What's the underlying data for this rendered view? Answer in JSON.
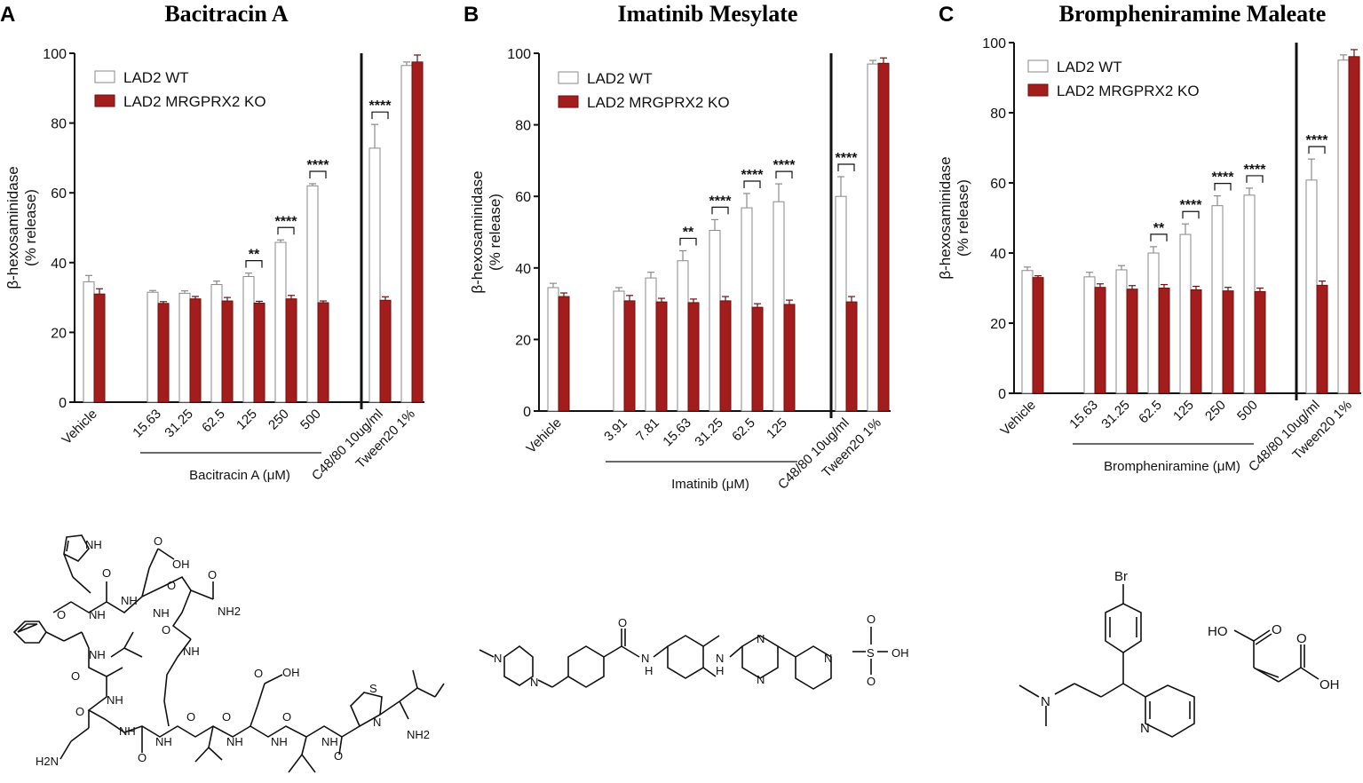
{
  "colors": {
    "wt_fill": "#ffffff",
    "ko_fill": "#a31d1d",
    "axis": "#111111"
  },
  "chart_data": [
    {
      "type": "bar",
      "panel_letter": "A",
      "title": "Bacitracin A",
      "ylabel_line1": "β-hexosaminidase",
      "ylabel_line2": "(% release)",
      "ylim": [
        0,
        100
      ],
      "yticks": [
        0,
        20,
        40,
        60,
        80,
        100
      ],
      "categories": [
        "Vehicle",
        "15.63",
        "31.25",
        "62.5",
        "125",
        "250",
        "500",
        "C48/80 10ug/ml",
        "Tween20 1%"
      ],
      "group_label": "Bacitracin A (μM)",
      "legend": [
        "LAD2 WT",
        "LAD2 MRGPRX2 KO"
      ],
      "series": [
        {
          "name": "LAD2 WT",
          "values": [
            34.5,
            31.5,
            31.2,
            33.7,
            36.0,
            45.8,
            62.0,
            72.8,
            96.5
          ],
          "errors": [
            1.8,
            0.5,
            0.7,
            1.0,
            1.0,
            0.7,
            0.6,
            6.8,
            1.0
          ]
        },
        {
          "name": "LAD2 MRGPRX2 KO",
          "values": [
            31.0,
            28.3,
            29.6,
            29.0,
            28.4,
            29.6,
            28.5,
            29.2,
            97.5
          ],
          "errors": [
            1.5,
            0.5,
            0.7,
            1.0,
            0.5,
            1.0,
            0.5,
            1.0,
            2.0
          ]
        }
      ],
      "significance": [
        {
          "category": "125",
          "label": "**"
        },
        {
          "category": "250",
          "label": "****"
        },
        {
          "category": "500",
          "label": "****"
        },
        {
          "category": "C48/80 10ug/ml",
          "label": "****"
        }
      ]
    },
    {
      "type": "bar",
      "panel_letter": "B",
      "title": "Imatinib Mesylate",
      "ylabel_line1": "β-hexosaminidase",
      "ylabel_line2": "(% release)",
      "ylim": [
        0,
        100
      ],
      "yticks": [
        0,
        20,
        40,
        60,
        80,
        100
      ],
      "categories": [
        "Vehicle",
        "3.91",
        "7.81",
        "15.63",
        "31.25",
        "62.5",
        "125",
        "C48/80 10ug/ml",
        "Tween20 1%"
      ],
      "group_label": "Imatinib (μM)",
      "legend": [
        "LAD2 WT",
        "LAD2 MRGPRX2 KO"
      ],
      "series": [
        {
          "name": "LAD2 WT",
          "values": [
            34.5,
            33.5,
            37.2,
            42.0,
            50.5,
            56.8,
            58.5,
            60.0,
            97.0
          ],
          "errors": [
            1.2,
            1.0,
            1.6,
            2.8,
            3.0,
            4.0,
            5.0,
            5.5,
            1.0
          ]
        },
        {
          "name": "LAD2 MRGPRX2 KO",
          "values": [
            32.0,
            30.8,
            30.5,
            30.3,
            30.8,
            29.0,
            29.8,
            30.5,
            97.2
          ],
          "errors": [
            1.0,
            1.5,
            1.0,
            1.0,
            1.2,
            1.0,
            1.2,
            1.5,
            1.5
          ]
        }
      ],
      "significance": [
        {
          "category": "15.63",
          "label": "**"
        },
        {
          "category": "31.25",
          "label": "****"
        },
        {
          "category": "62.5",
          "label": "****"
        },
        {
          "category": "125",
          "label": "****"
        },
        {
          "category": "C48/80 10ug/ml",
          "label": "****"
        }
      ]
    },
    {
      "type": "bar",
      "panel_letter": "C",
      "title": "Brompheniramine Maleate",
      "ylabel_line1": "β-hexosaminidase",
      "ylabel_line2": "(% release)",
      "ylim": [
        0,
        100
      ],
      "yticks": [
        0,
        20,
        40,
        60,
        80,
        100
      ],
      "categories": [
        "Vehicle",
        "15.63",
        "31.25",
        "62.5",
        "125",
        "250",
        "500",
        "C48/80 10ug/ml",
        "Tween20 1%"
      ],
      "group_label": "Brompheniramine (μM)",
      "legend": [
        "LAD2 WT",
        "LAD2 MRGPRX2 KO"
      ],
      "series": [
        {
          "name": "LAD2 WT",
          "values": [
            35.0,
            33.2,
            35.2,
            40.0,
            45.3,
            53.5,
            56.5,
            60.8,
            95.0
          ],
          "errors": [
            1.0,
            1.3,
            1.2,
            1.8,
            3.0,
            2.8,
            2.0,
            6.0,
            1.5
          ]
        },
        {
          "name": "LAD2 MRGPRX2 KO",
          "values": [
            33.0,
            30.2,
            29.7,
            30.0,
            29.5,
            29.2,
            29.0,
            30.8,
            96.0
          ],
          "errors": [
            0.5,
            1.0,
            1.0,
            1.0,
            1.0,
            1.0,
            1.0,
            1.2,
            2.0
          ]
        }
      ],
      "significance": [
        {
          "category": "62.5",
          "label": "**"
        },
        {
          "category": "125",
          "label": "****"
        },
        {
          "category": "250",
          "label": "****"
        },
        {
          "category": "500",
          "label": "****"
        },
        {
          "category": "C48/80 10ug/ml",
          "label": "****"
        }
      ]
    }
  ],
  "structures": {
    "bacitracin": [
      "NH",
      "OH",
      "O",
      "O",
      "O",
      "NH",
      "NH",
      "NH2",
      "O",
      "O",
      "NH",
      "NH",
      "O",
      "NH",
      "NH",
      "O",
      "O",
      "OH",
      "O",
      "NH",
      "O",
      "NH",
      "O",
      "S",
      "N",
      "NH2",
      "H2N",
      "O",
      "NH",
      "NH",
      "O",
      "NH",
      "O"
    ],
    "imatinib": [
      "N",
      "N",
      "O",
      "N",
      "H",
      "N",
      "N",
      "N",
      "H",
      "N",
      "O",
      "S",
      "OH",
      "O"
    ],
    "brompheniramine": [
      "Br",
      "N",
      "N",
      "HO",
      "O",
      "O",
      "OH"
    ]
  }
}
